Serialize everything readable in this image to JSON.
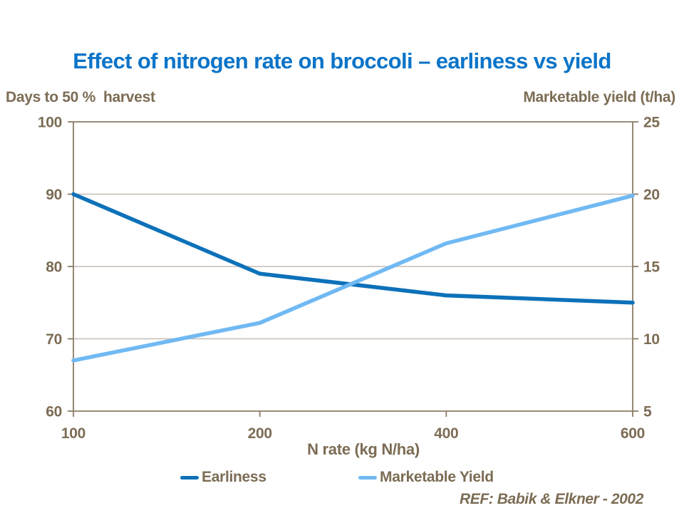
{
  "colors": {
    "title_blue": "#0A74C8",
    "text_brown": "#7C6C54",
    "axis_line": "#8B7B66",
    "gridline": "#C6BCB2",
    "earliness_blue": "#0D71B9",
    "yield_light_blue": "#70B9F3"
  },
  "chart_data": {
    "type": "line",
    "title": "Effect of nitrogen rate on broccoli – earliness vs yield",
    "x_categories": [
      "100",
      "200",
      "400",
      "600"
    ],
    "xlabel": "N rate (kg N/ha)",
    "axes": {
      "left": {
        "label": "Days to 50 %  harvest",
        "ticks": [
          100,
          90,
          80,
          70,
          60
        ],
        "range": [
          60,
          100
        ]
      },
      "right": {
        "label": "Marketable yield (t/ha)",
        "ticks": [
          25,
          20,
          15,
          10,
          5
        ],
        "range": [
          5,
          25
        ]
      }
    },
    "series": [
      {
        "name": "Earliness",
        "axis": "left",
        "color": "#0D71B9",
        "values": [
          90,
          79,
          76,
          75
        ]
      },
      {
        "name": "Marketable Yield",
        "axis": "right",
        "color": "#70B9F3",
        "values": [
          8.5,
          11.1,
          16.6,
          19.9
        ]
      }
    ],
    "grid": true,
    "legend_position": "bottom",
    "annotation": "REF: Babik & Elkner - 2002"
  }
}
